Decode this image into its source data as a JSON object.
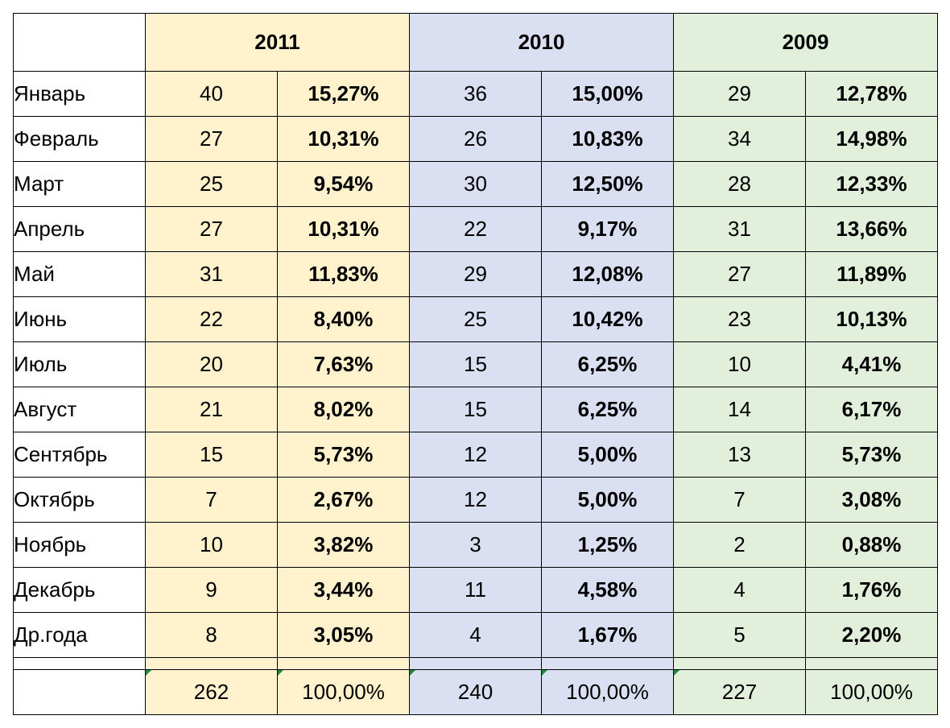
{
  "years": [
    "2011",
    "2010",
    "2009"
  ],
  "colors": {
    "y2011": "#fff2cc",
    "y2010": "#dae0f2",
    "y2009": "#e2efda",
    "error_marker": "#1e8c3a"
  },
  "rows": [
    {
      "month": "Январь",
      "v2011": "40",
      "p2011": "15,27%",
      "v2010": "36",
      "p2010": "15,00%",
      "v2009": "29",
      "p2009": "12,78%"
    },
    {
      "month": "Февраль",
      "v2011": "27",
      "p2011": "10,31%",
      "v2010": "26",
      "p2010": "10,83%",
      "v2009": "34",
      "p2009": "14,98%"
    },
    {
      "month": "Март",
      "v2011": "25",
      "p2011": "9,54%",
      "v2010": "30",
      "p2010": "12,50%",
      "v2009": "28",
      "p2009": "12,33%"
    },
    {
      "month": "Апрель",
      "v2011": "27",
      "p2011": "10,31%",
      "v2010": "22",
      "p2010": "9,17%",
      "v2009": "31",
      "p2009": "13,66%"
    },
    {
      "month": "Май",
      "v2011": "31",
      "p2011": "11,83%",
      "v2010": "29",
      "p2010": "12,08%",
      "v2009": "27",
      "p2009": "11,89%"
    },
    {
      "month": "Июнь",
      "v2011": "22",
      "p2011": "8,40%",
      "v2010": "25",
      "p2010": "10,42%",
      "v2009": "23",
      "p2009": "10,13%"
    },
    {
      "month": "Июль",
      "v2011": "20",
      "p2011": "7,63%",
      "v2010": "15",
      "p2010": "6,25%",
      "v2009": "10",
      "p2009": "4,41%"
    },
    {
      "month": "Август",
      "v2011": "21",
      "p2011": "8,02%",
      "v2010": "15",
      "p2010": "6,25%",
      "v2009": "14",
      "p2009": "6,17%"
    },
    {
      "month": "Сентябрь",
      "v2011": "15",
      "p2011": "5,73%",
      "v2010": "12",
      "p2010": "5,00%",
      "v2009": "13",
      "p2009": "5,73%"
    },
    {
      "month": "Октябрь",
      "v2011": "7",
      "p2011": "2,67%",
      "v2010": "12",
      "p2010": "5,00%",
      "v2009": "7",
      "p2009": "3,08%"
    },
    {
      "month": "Ноябрь",
      "v2011": "10",
      "p2011": "3,82%",
      "v2010": "3",
      "p2010": "1,25%",
      "v2009": "2",
      "p2009": "0,88%"
    },
    {
      "month": "Декабрь",
      "v2011": "9",
      "p2011": "3,44%",
      "v2010": "11",
      "p2010": "4,58%",
      "v2009": "4",
      "p2009": "1,76%"
    },
    {
      "month": "Др.года",
      "v2011": "8",
      "p2011": "3,05%",
      "v2010": "4",
      "p2010": "1,67%",
      "v2009": "5",
      "p2009": "2,20%"
    }
  ],
  "totals": {
    "v2011": "262",
    "p2011": "100,00%",
    "v2010": "240",
    "p2010": "100,00%",
    "v2009": "227",
    "p2009": "100,00%"
  }
}
